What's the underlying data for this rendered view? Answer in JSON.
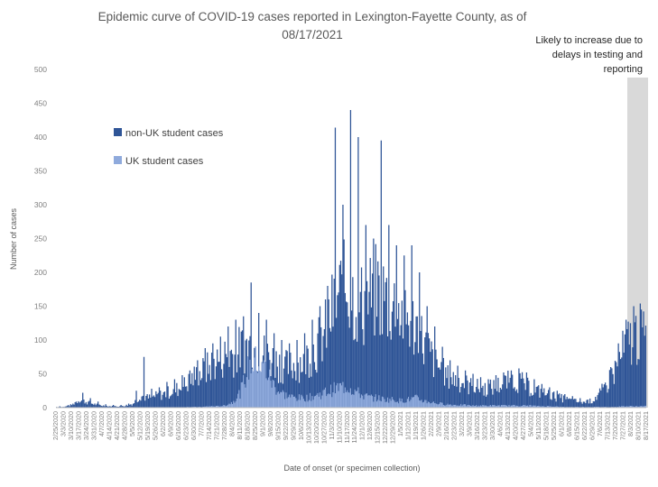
{
  "chart_data": {
    "type": "bar",
    "title_lines": [
      "Epidemic curve of COVID-19 cases reported in Lexington-Fayette County, as of",
      "08/17/2021"
    ],
    "xlabel": "Date of onset (or specimen collection)",
    "ylabel": "Number of cases",
    "ylim": [
      0,
      500
    ],
    "yticks": [
      0,
      50,
      100,
      150,
      200,
      250,
      300,
      350,
      400,
      450,
      500
    ],
    "grid": false,
    "stacked": true,
    "x_tick_labels": [
      "2/25/2020",
      "3/3/2020",
      "3/10/2020",
      "3/17/2020",
      "3/24/2020",
      "3/31/2020",
      "4/7/2020",
      "4/14/2020",
      "4/21/2020",
      "4/28/2020",
      "5/5/2020",
      "5/12/2020",
      "5/19/2020",
      "5/26/2020",
      "6/2/2020",
      "6/9/2020",
      "6/16/2020",
      "6/23/2020",
      "6/30/2020",
      "7/7/2020",
      "7/14/2020",
      "7/21/2020",
      "7/28/2020",
      "8/4/2020",
      "8/11/2020",
      "8/18/2020",
      "8/25/2020",
      "9/1/2020",
      "9/8/2020",
      "9/15/2020",
      "9/22/2020",
      "9/29/2020",
      "10/6/2020",
      "10/13/2020",
      "10/20/2020",
      "10/27/2020",
      "11/3/2020",
      "11/10/2020",
      "11/17/2020",
      "11/24/2020",
      "12/1/2020",
      "12/8/2020",
      "12/15/2020",
      "12/22/2020",
      "12/29/2020",
      "1/5/2021",
      "1/12/2021",
      "1/19/2021",
      "1/26/2021",
      "2/2/2021",
      "2/9/2021",
      "2/16/2021",
      "2/23/2021",
      "3/2/2021",
      "3/9/2021",
      "3/16/2021",
      "3/23/2021",
      "3/30/2021",
      "4/6/2021",
      "4/13/2021",
      "4/20/2021",
      "4/27/2021",
      "5/4/2021",
      "5/11/2021",
      "5/18/2021",
      "5/25/2021",
      "6/1/2021",
      "6/8/2021",
      "6/15/2021",
      "6/22/2021",
      "6/29/2021",
      "7/6/2021",
      "7/13/2021",
      "7/20/2021",
      "7/27/2021",
      "8/3/2021",
      "8/10/2021",
      "8/17/2021"
    ],
    "series": [
      {
        "name": "non-UK student cases",
        "color": "#2f5597",
        "weekly_avg_total": [
          1,
          1,
          4,
          12,
          8,
          5,
          3,
          2,
          2,
          3,
          6,
          18,
          14,
          17,
          20,
          24,
          28,
          35,
          45,
          52,
          60,
          70,
          76,
          80,
          85,
          92,
          88,
          80,
          72,
          66,
          60,
          62,
          68,
          78,
          90,
          108,
          140,
          165,
          178,
          160,
          150,
          162,
          172,
          160,
          150,
          140,
          130,
          120,
          95,
          75,
          60,
          45,
          42,
          38,
          32,
          30,
          28,
          30,
          34,
          38,
          40,
          36,
          28,
          24,
          20,
          17,
          14,
          11,
          9,
          8,
          10,
          20,
          36,
          55,
          80,
          100,
          110,
          100
        ],
        "weekly_peak_total": [
          2,
          3,
          8,
          22,
          14,
          9,
          5,
          4,
          4,
          6,
          25,
          75,
          28,
          30,
          38,
          42,
          48,
          55,
          70,
          88,
          95,
          105,
          120,
          130,
          135,
          185,
          140,
          130,
          110,
          100,
          95,
          100,
          110,
          130,
          150,
          180,
          414,
          300,
          440,
          400,
          270,
          250,
          395,
          270,
          240,
          225,
          240,
          200,
          150,
          120,
          90,
          70,
          62,
          55,
          50,
          45,
          42,
          48,
          52,
          55,
          58,
          52,
          42,
          35,
          30,
          25,
          20,
          17,
          14,
          12,
          16,
          30,
          60,
          95,
          130,
          150,
          145,
          135
        ]
      },
      {
        "name": "UK student cases",
        "color": "#8faadc",
        "weekly_avg": [
          0,
          0,
          0,
          0,
          0,
          0,
          0,
          0,
          0,
          0,
          0,
          0,
          0,
          0,
          0,
          0,
          0,
          1,
          1,
          1,
          2,
          2,
          3,
          8,
          22,
          55,
          75,
          65,
          40,
          25,
          18,
          15,
          14,
          15,
          18,
          22,
          26,
          30,
          32,
          25,
          18,
          15,
          14,
          12,
          12,
          10,
          12,
          14,
          10,
          8,
          6,
          5,
          4,
          4,
          3,
          3,
          3,
          3,
          3,
          3,
          3,
          3,
          3,
          2,
          2,
          2,
          1,
          1,
          1,
          1,
          1,
          1,
          1,
          1,
          2,
          2,
          2,
          2
        ]
      }
    ],
    "shaded_region": {
      "from": "8/3/2021",
      "to": "8/17/2021",
      "color": "#d9d9d9",
      "note_lines": [
        "Likely to increase due to",
        "delays in testing and",
        "reporting"
      ]
    },
    "legend_placement": "upper-left inside plot"
  }
}
